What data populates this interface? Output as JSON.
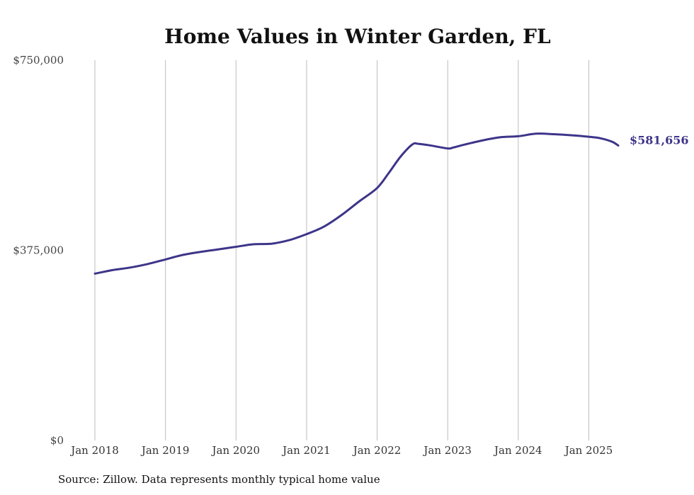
{
  "chart_data": {
    "type": "line",
    "title": "Home Values in Winter Garden, FL",
    "xlabel": "",
    "ylabel": "",
    "ylim": [
      0,
      750000
    ],
    "xlim": [
      "2018-01",
      "2025-06"
    ],
    "grid": "vertical",
    "line_color": "#3d3589",
    "y_ticks": [
      {
        "value": 0,
        "label": "$0"
      },
      {
        "value": 375000,
        "label": "$375,000"
      },
      {
        "value": 750000,
        "label": "$750,000"
      }
    ],
    "x_ticks": [
      {
        "value": "2018-01",
        "label": "Jan 2018"
      },
      {
        "value": "2019-01",
        "label": "Jan 2019"
      },
      {
        "value": "2020-01",
        "label": "Jan 2020"
      },
      {
        "value": "2021-01",
        "label": "Jan 2021"
      },
      {
        "value": "2022-01",
        "label": "Jan 2022"
      },
      {
        "value": "2023-01",
        "label": "Jan 2023"
      },
      {
        "value": "2024-01",
        "label": "Jan 2024"
      },
      {
        "value": "2025-01",
        "label": "Jan 2025"
      }
    ],
    "series": [
      {
        "x": [
          "2018-01",
          "2018-04",
          "2018-07",
          "2018-10",
          "2019-01",
          "2019-04",
          "2019-07",
          "2019-10",
          "2020-01",
          "2020-04",
          "2020-07",
          "2020-10",
          "2021-01",
          "2021-04",
          "2021-07",
          "2021-10",
          "2022-01",
          "2022-03",
          "2022-05",
          "2022-07",
          "2022-08",
          "2022-10",
          "2023-01",
          "2023-02",
          "2023-04",
          "2023-07",
          "2023-10",
          "2024-01",
          "2024-04",
          "2024-07",
          "2024-10",
          "2025-01",
          "2025-03",
          "2025-05",
          "2025-06"
        ],
        "values": [
          329000,
          336000,
          341000,
          348000,
          357000,
          366000,
          372000,
          377000,
          382000,
          387000,
          388000,
          395000,
          407000,
          422000,
          445000,
          472000,
          498000,
          528000,
          560000,
          584000,
          585000,
          582000,
          576000,
          578000,
          584000,
          592000,
          598000,
          600000,
          605000,
          604000,
          602000,
          599000,
          596000,
          589000,
          581656
        ]
      }
    ],
    "end_label": "$581,656"
  },
  "source": "Source: Zillow. Data represents monthly typical home value"
}
